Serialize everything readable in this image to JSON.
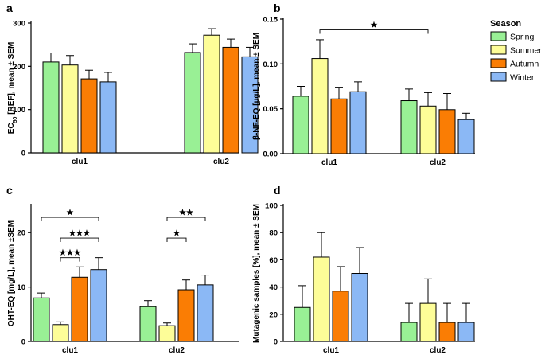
{
  "colors": {
    "Spring": "#99f095",
    "Summer": "#fdfd98",
    "Autumn": "#fa7d04",
    "Winter": "#8bb8f5"
  },
  "legend": {
    "title": "Season",
    "items": [
      "Spring",
      "Summer",
      "Autumn",
      "Winter"
    ]
  },
  "chart_data": [
    {
      "panel": "a",
      "type": "bar",
      "ylabel_parts": [
        "EC",
        "50",
        " [REF], mean ± SEM"
      ],
      "categories": [
        "clu1",
        "clu2"
      ],
      "ylim": [
        0,
        300
      ],
      "yticks": [
        0,
        100,
        200,
        300
      ],
      "tick_labels": [
        "0",
        "100",
        "200",
        "300"
      ],
      "series": [
        {
          "name": "Spring",
          "values": [
            210,
            232
          ],
          "errors": [
            21,
            20
          ]
        },
        {
          "name": "Summer",
          "values": [
            203,
            272
          ],
          "errors": [
            22,
            15
          ]
        },
        {
          "name": "Autumn",
          "values": [
            171,
            244
          ],
          "errors": [
            20,
            19
          ]
        },
        {
          "name": "Winter",
          "values": [
            164,
            222
          ],
          "errors": [
            22,
            22
          ]
        }
      ],
      "significance": []
    },
    {
      "panel": "b",
      "type": "bar",
      "ylabel_parts": [
        "β-NF-EQ [µg/L], mean ± SEM"
      ],
      "categories": [
        "clu1",
        "clu2"
      ],
      "ylim": [
        0,
        0.15
      ],
      "yticks": [
        0,
        0.05,
        0.1,
        0.15
      ],
      "tick_labels": [
        "0.00",
        "0.05",
        "0.10",
        "0.15"
      ],
      "series": [
        {
          "name": "Spring",
          "values": [
            0.064,
            0.059
          ],
          "errors": [
            0.011,
            0.013
          ]
        },
        {
          "name": "Summer",
          "values": [
            0.106,
            0.053
          ],
          "errors": [
            0.021,
            0.015
          ]
        },
        {
          "name": "Autumn",
          "values": [
            0.061,
            0.049
          ],
          "errors": [
            0.013,
            0.018
          ]
        },
        {
          "name": "Winter",
          "values": [
            0.069,
            0.038
          ],
          "errors": [
            0.011,
            0.007
          ]
        }
      ],
      "significance": [
        {
          "from": [
            "clu1",
            "Summer"
          ],
          "to": [
            "clu2",
            "Summer"
          ],
          "y": 0.138,
          "label": "★"
        }
      ]
    },
    {
      "panel": "c",
      "type": "bar",
      "ylabel_parts": [
        "OHT-EQ [mg/L], mean ±SEM"
      ],
      "categories": [
        "clu1",
        "clu2"
      ],
      "ylim": [
        0,
        25
      ],
      "yticks": [
        0,
        10,
        20
      ],
      "tick_labels": [
        "0",
        "10",
        "20"
      ],
      "series": [
        {
          "name": "Spring",
          "values": [
            8.0,
            6.4
          ],
          "errors": [
            0.9,
            1.1
          ]
        },
        {
          "name": "Summer",
          "values": [
            3.1,
            2.9
          ],
          "errors": [
            0.5,
            0.5
          ]
        },
        {
          "name": "Autumn",
          "values": [
            11.8,
            9.5
          ],
          "errors": [
            1.9,
            1.8
          ]
        },
        {
          "name": "Winter",
          "values": [
            13.2,
            10.4
          ],
          "errors": [
            2.2,
            1.8
          ]
        }
      ],
      "significance": [
        {
          "from": [
            "clu1",
            "Spring"
          ],
          "to": [
            "clu1",
            "Winter"
          ],
          "y": 22.8,
          "label": "★"
        },
        {
          "from": [
            "clu1",
            "Summer"
          ],
          "to": [
            "clu1",
            "Winter"
          ],
          "y": 19.0,
          "label": "★★★"
        },
        {
          "from": [
            "clu1",
            "Summer"
          ],
          "to": [
            "clu1",
            "Autumn"
          ],
          "y": 15.4,
          "label": "★★★"
        },
        {
          "from": [
            "clu2",
            "Summer"
          ],
          "to": [
            "clu2",
            "Winter"
          ],
          "y": 22.8,
          "label": "★★"
        },
        {
          "from": [
            "clu2",
            "Summer"
          ],
          "to": [
            "clu2",
            "Autumn"
          ],
          "y": 19.0,
          "label": "★"
        }
      ]
    },
    {
      "panel": "d",
      "type": "bar",
      "ylabel_parts": [
        "Mutagenic samples [%], mean ± SEM"
      ],
      "categories": [
        "clu1",
        "clu2"
      ],
      "ylim": [
        0,
        100
      ],
      "yticks": [
        0,
        20,
        40,
        60,
        80,
        100
      ],
      "tick_labels": [
        "0",
        "20",
        "40",
        "60",
        "80",
        "100"
      ],
      "series": [
        {
          "name": "Spring",
          "values": [
            25,
            14
          ],
          "errors": [
            16,
            14
          ]
        },
        {
          "name": "Summer",
          "values": [
            62,
            28
          ],
          "errors": [
            18,
            18
          ]
        },
        {
          "name": "Autumn",
          "values": [
            37,
            14
          ],
          "errors": [
            18,
            14
          ]
        },
        {
          "name": "Winter",
          "values": [
            50,
            14
          ],
          "errors": [
            19,
            14
          ]
        }
      ],
      "significance": []
    }
  ]
}
